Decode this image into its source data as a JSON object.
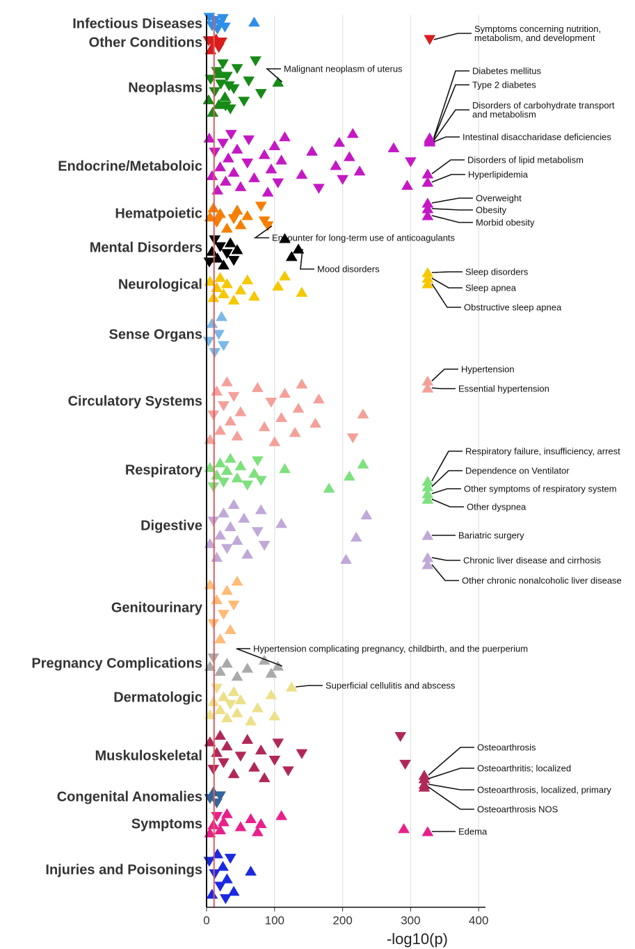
{
  "chart_data": {
    "type": "scatter",
    "xlabel": "-log10(p)",
    "xlim": [
      0,
      410
    ],
    "xticks": [
      0,
      100,
      200,
      300,
      400
    ],
    "grid": true,
    "reference_line": {
      "value": 11,
      "color": "#e05a5a"
    },
    "series": [
      {
        "name": "Infectious Diseases",
        "color": "#2e8fe8",
        "values": [
          4,
          8,
          12,
          16,
          20,
          24,
          27,
          70
        ],
        "markers": [
          "v",
          "v",
          "v",
          "v",
          "v",
          "v",
          "v",
          "^"
        ],
        "labeled": []
      },
      {
        "name": "Other Conditions",
        "color": "#d91c1c",
        "values": [
          3,
          6,
          10,
          14,
          18,
          22
        ],
        "markers": [
          "v",
          "^",
          "v",
          "^",
          "v",
          "v"
        ],
        "labeled": [
          {
            "label": "Symptoms concerning nutrition, metabolism, and development",
            "value": 328,
            "marker": "v"
          }
        ]
      },
      {
        "name": "Neoplasms",
        "color": "#178a17",
        "values": [
          3,
          6,
          9,
          12,
          15,
          18,
          21,
          24,
          27,
          30,
          35,
          40,
          45,
          55,
          62,
          72,
          80,
          20,
          28,
          33
        ],
        "markers": [
          "^",
          "v",
          "^",
          "v",
          "v",
          "^",
          "v",
          "v",
          "^",
          "v",
          "v",
          "v",
          "v",
          "v",
          "v",
          "v",
          "v",
          "^",
          "v",
          "v"
        ],
        "labeled": [
          {
            "label": "Malignant neoplasm of uterus",
            "value": 105,
            "marker": "^"
          }
        ]
      },
      {
        "name": "Endocrine/Metaboloic",
        "color": "#c418c4",
        "values": [
          4,
          8,
          12,
          16,
          20,
          24,
          28,
          32,
          36,
          40,
          45,
          50,
          60,
          62,
          70,
          85,
          90,
          95,
          100,
          105,
          110,
          115,
          140,
          155,
          165,
          190,
          195,
          200,
          210,
          215,
          225,
          275,
          295,
          300
        ],
        "markers": [
          "^",
          "^",
          "v",
          "^",
          "^",
          "v",
          "^",
          "^",
          "v",
          "^",
          "^",
          "^",
          "v",
          "v",
          "^",
          "^",
          "^",
          "^",
          "^",
          "v",
          "^",
          "^",
          "^",
          "^",
          "v",
          "^",
          "^",
          "v",
          "^",
          "^",
          "^",
          "^",
          "^",
          "v"
        ],
        "labeled": [
          {
            "label": "Diabetes mellitus",
            "value": 328,
            "marker": "^"
          },
          {
            "label": "Type 2 diabetes",
            "value": 328,
            "marker": "^"
          },
          {
            "label": "Disorders of carbohydrate transport and metabolism",
            "value": 328,
            "marker": "^"
          },
          {
            "label": "Intestinal disaccharidase deficiencies",
            "value": 328,
            "marker": "^"
          },
          {
            "label": "Disorders of lipid metabolism",
            "value": 325,
            "marker": "^"
          },
          {
            "label": "Hyperlipidemia",
            "value": 325,
            "marker": "^"
          },
          {
            "label": "Overweight",
            "value": 325,
            "marker": "^"
          },
          {
            "label": "Obesity",
            "value": 325,
            "marker": "^"
          },
          {
            "label": "Morbid obesity",
            "value": 325,
            "marker": "^"
          }
        ]
      },
      {
        "name": "Hematpoietic",
        "color": "#f57f00",
        "values": [
          5,
          10,
          15,
          20,
          30,
          40,
          45,
          50,
          60,
          80,
          85
        ],
        "markers": [
          "^",
          "^",
          "v",
          "^",
          "^",
          "v",
          "^",
          "^",
          "^",
          "v",
          "v"
        ],
        "labeled": [
          {
            "label": "Encounter for long-term use of anticoagulants",
            "value": 90,
            "marker": "v"
          }
        ]
      },
      {
        "name": "Mental Disorders",
        "color": "#000000",
        "values": [
          4,
          8,
          12,
          16,
          20,
          25,
          30,
          35,
          40,
          45,
          115,
          125
        ],
        "markers": [
          "v",
          "^",
          "v",
          "^",
          "v",
          "^",
          "v",
          "^",
          "v",
          "^",
          "^",
          "^"
        ],
        "labeled": [
          {
            "label": "Mood disorders",
            "value": 135,
            "marker": "^"
          }
        ]
      },
      {
        "name": "Neurological",
        "color": "#f5c800",
        "values": [
          5,
          10,
          15,
          20,
          25,
          30,
          40,
          50,
          60,
          70,
          105,
          115,
          140
        ],
        "markers": [
          "^",
          "^",
          "^",
          "^",
          "^",
          "^",
          "^",
          "^",
          "^",
          "^",
          "^",
          "^",
          "^"
        ],
        "labeled": [
          {
            "label": "Sleep disorders",
            "value": 325,
            "marker": "^"
          },
          {
            "label": "Sleep apnea",
            "value": 325,
            "marker": "^"
          },
          {
            "label": "Obstructive sleep apnea",
            "value": 325,
            "marker": "^"
          }
        ]
      },
      {
        "name": "Sense Organs",
        "color": "#7ab8e8",
        "values": [
          3,
          8,
          12,
          18,
          22,
          25
        ],
        "markers": [
          "v",
          "^",
          "v",
          "v",
          "^",
          "v"
        ],
        "labeled": []
      },
      {
        "name": "Circulatory Systems",
        "color": "#f4a09a",
        "values": [
          5,
          10,
          15,
          20,
          25,
          30,
          35,
          40,
          45,
          50,
          75,
          85,
          95,
          100,
          110,
          115,
          130,
          135,
          140,
          160,
          165,
          215,
          230
        ],
        "markers": [
          "^",
          "v",
          "^",
          "^",
          "v",
          "^",
          "^",
          "v",
          "^",
          "^",
          "^",
          "^",
          "v",
          "^",
          "^",
          "^",
          "^",
          "^",
          "^",
          "^",
          "^",
          "v",
          "^"
        ],
        "labeled": [
          {
            "label": "Hypertension",
            "value": 325,
            "marker": "^"
          },
          {
            "label": "Essential hypertension",
            "value": 325,
            "marker": "^"
          }
        ]
      },
      {
        "name": "Respiratory",
        "color": "#7ee07e",
        "values": [
          5,
          10,
          15,
          20,
          25,
          30,
          35,
          45,
          50,
          60,
          70,
          75,
          80,
          115,
          180,
          210,
          230
        ],
        "markers": [
          "^",
          "v",
          "^",
          "^",
          "v",
          "^",
          "^",
          "^",
          "^",
          "v",
          "^",
          "v",
          "v",
          "^",
          "^",
          "^",
          "^"
        ],
        "labeled": [
          {
            "label": "Respiratory failure, insufficiency, arrest",
            "value": 325,
            "marker": "^"
          },
          {
            "label": "Dependence on Ventilator",
            "value": 325,
            "marker": "^"
          },
          {
            "label": "Other symptoms of respiratory system",
            "value": 325,
            "marker": "^"
          },
          {
            "label": "Other dyspnea",
            "value": 325,
            "marker": "^"
          }
        ]
      },
      {
        "name": "Digestive",
        "color": "#c0a8d8",
        "values": [
          5,
          10,
          15,
          20,
          25,
          30,
          35,
          40,
          45,
          55,
          60,
          75,
          80,
          85,
          110,
          205,
          220,
          235
        ],
        "markers": [
          "^",
          "v",
          "^",
          "^",
          "^",
          "v",
          "^",
          "^",
          "^",
          "^",
          "^",
          "v",
          "^",
          "v",
          "^",
          "^",
          "^",
          "^"
        ],
        "labeled": [
          {
            "label": "Bariatric surgery",
            "value": 325,
            "marker": "^"
          },
          {
            "label": "Chronic liver disease and cirrhosis",
            "value": 325,
            "marker": "^"
          },
          {
            "label": "Other chronic nonalcoholic liver disease",
            "value": 325,
            "marker": "^"
          }
        ]
      },
      {
        "name": "Genitourinary",
        "color": "#ffbb77",
        "values": [
          5,
          10,
          15,
          20,
          25,
          30,
          35,
          40,
          45
        ],
        "markers": [
          "^",
          "v",
          "^",
          "^",
          "v",
          "^",
          "^",
          "v",
          "^"
        ],
        "labeled": []
      },
      {
        "name": "Pregnancy Complications",
        "color": "#aaaaaa",
        "values": [
          5,
          10,
          20,
          30,
          45,
          60,
          85,
          95
        ],
        "markers": [
          "^",
          "v",
          "^",
          "^",
          "^",
          "^",
          "^",
          "^"
        ],
        "labeled": [
          {
            "label": "Hypertension complicating pregnancy, childbirth, and the puerperium",
            "value": 105,
            "marker": "^"
          }
        ]
      },
      {
        "name": "Dermatologic",
        "color": "#ece08a",
        "values": [
          5,
          10,
          15,
          20,
          25,
          30,
          35,
          40,
          45,
          50,
          65,
          75,
          95,
          100
        ],
        "markers": [
          "^",
          "^",
          "v",
          "^",
          "^",
          "^",
          "v",
          "^",
          "^",
          "^",
          "^",
          "^",
          "^",
          "^"
        ],
        "labeled": [
          {
            "label": "Superficial cellulitis and abscess",
            "value": 125,
            "marker": "^"
          }
        ]
      },
      {
        "name": "Muskuloskeletal",
        "color": "#b0285a",
        "values": [
          5,
          10,
          15,
          20,
          25,
          30,
          40,
          50,
          60,
          70,
          80,
          85,
          100,
          105,
          120,
          140,
          285,
          292
        ],
        "markers": [
          "^",
          "v",
          "^",
          "^",
          "v",
          "^",
          "^",
          "v",
          "^",
          "^",
          "^",
          "^",
          "v",
          "v",
          "v",
          "v",
          "v",
          "v"
        ],
        "labeled": [
          {
            "label": "Osteoarthrosis",
            "value": 320,
            "marker": "^"
          },
          {
            "label": "Osteoarthritis; localized",
            "value": 320,
            "marker": "^"
          },
          {
            "label": "Osteoarthrosis, localized, primary",
            "value": 320,
            "marker": "^"
          },
          {
            "label": "Osteoarthrosis NOS",
            "value": 320,
            "marker": "^"
          }
        ]
      },
      {
        "name": "Congenital Anomalies",
        "color": "#336699",
        "values": [
          5,
          10,
          15,
          20
        ],
        "markers": [
          "v",
          "^",
          "v",
          "v"
        ],
        "labeled": []
      },
      {
        "name": "Symptoms",
        "color": "#e8208a",
        "values": [
          5,
          10,
          15,
          20,
          25,
          30,
          50,
          65,
          75,
          80,
          110,
          290
        ],
        "markers": [
          "^",
          "^",
          "v",
          "^",
          "^",
          "^",
          "^",
          "^",
          "^",
          "^",
          "^",
          "^"
        ],
        "labeled": [
          {
            "label": "Edema",
            "value": 325,
            "marker": "^"
          }
        ]
      },
      {
        "name": "Injuries and Poisonings",
        "color": "#1a2ae0",
        "values": [
          4,
          8,
          12,
          16,
          20,
          24,
          28,
          30,
          35,
          40,
          65
        ],
        "markers": [
          "v",
          "^",
          "v",
          "^",
          "v",
          "^",
          "v",
          "^",
          "v",
          "^",
          "^"
        ],
        "labeled": []
      }
    ]
  }
}
